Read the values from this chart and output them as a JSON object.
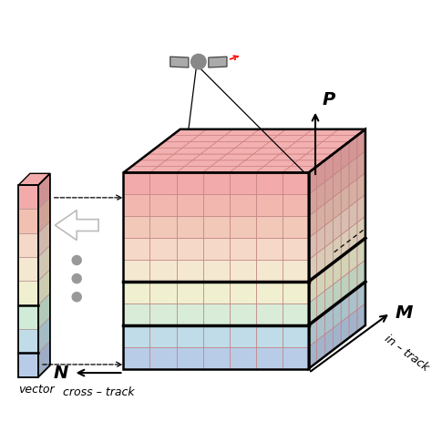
{
  "bg_color": "#ffffff",
  "all_band_colors": [
    "#f2aaaa",
    "#f2b8b0",
    "#f2c8b8",
    "#f5d8c8",
    "#f5e8d0",
    "#f0f0d0",
    "#d8ecd8",
    "#c0dce8",
    "#b8cce8"
  ],
  "small_band_colors": [
    "#f2aaaa",
    "#f2c0b0",
    "#f5d8c8",
    "#f5e8d0",
    "#f0f0d0",
    "#d0ecd8",
    "#c0dce8",
    "#b8cce8"
  ],
  "top_face_color": "#f2b0b0",
  "label_N": "N",
  "label_cross_track": "cross – track",
  "label_in_track": "in – track",
  "label_M": "M",
  "label_P": "P",
  "label_vector": "vector",
  "grid_color": "#c08080",
  "grid_color_right": "#c08080",
  "grid_color_top": "#d08080",
  "border_color": "#000000",
  "sep_linewidth": 2.5,
  "border_linewidth": 1.8,
  "grid_linewidth": 0.5,
  "sat_color": "#888888",
  "panel_color": "#aaaaaa",
  "dot_color": "#999999",
  "arrow_white_fc": "#ffffff",
  "arrow_white_ec": "#cccccc"
}
